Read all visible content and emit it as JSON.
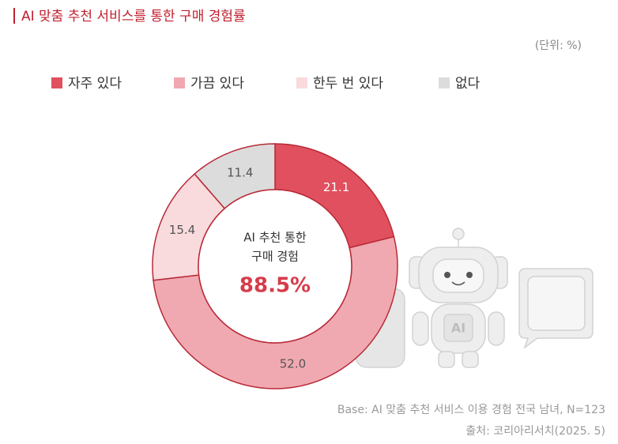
{
  "chart_data": {
    "type": "donut",
    "title": "AI 맞춤 추천 서비스를 통한 구매 경험률",
    "unit_note": "(단위: %)",
    "categories": [
      "자주 있다",
      "가끔 있다",
      "한두 번 있다",
      "없다"
    ],
    "values": [
      21.1,
      52.0,
      15.4,
      11.4
    ],
    "value_labels": [
      "21.1",
      "52.0",
      "15.4",
      "11.4"
    ],
    "colors": [
      "#e0505e",
      "#f0a9b0",
      "#f9dadd",
      "#dcdcdc"
    ],
    "center_text": [
      "AI 추천 통한",
      "구매 경험"
    ],
    "center_value": "88.5%",
    "illustration_text": "AI",
    "footnotes": [
      "Base: AI 맞춤 추천 서비스 이용 경험 전국 남녀, N=123",
      "출처: 코리아리서치(2025. 5)"
    ]
  }
}
